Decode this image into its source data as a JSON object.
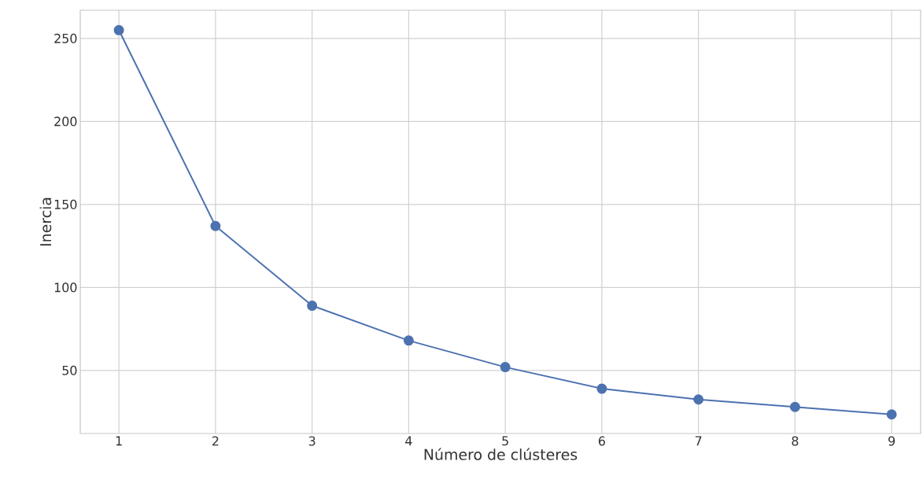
{
  "chart_data": {
    "type": "line",
    "xlabel": "Número de clústeres",
    "ylabel": "Inercia",
    "x": [
      1,
      2,
      3,
      4,
      5,
      6,
      7,
      8,
      9
    ],
    "series": [
      {
        "color": "#4c72b0",
        "values": [
          255,
          137,
          89,
          68,
          52,
          39,
          32.5,
          28,
          23.5
        ]
      }
    ],
    "xlim": [
      0.6,
      9.3
    ],
    "ylim": [
      12,
      267
    ],
    "xticks": [
      1,
      2,
      3,
      4,
      5,
      6,
      7,
      8,
      9
    ],
    "yticks": [
      50,
      100,
      150,
      200,
      250
    ],
    "grid": true,
    "marker": "circle",
    "line_style": "solid"
  }
}
